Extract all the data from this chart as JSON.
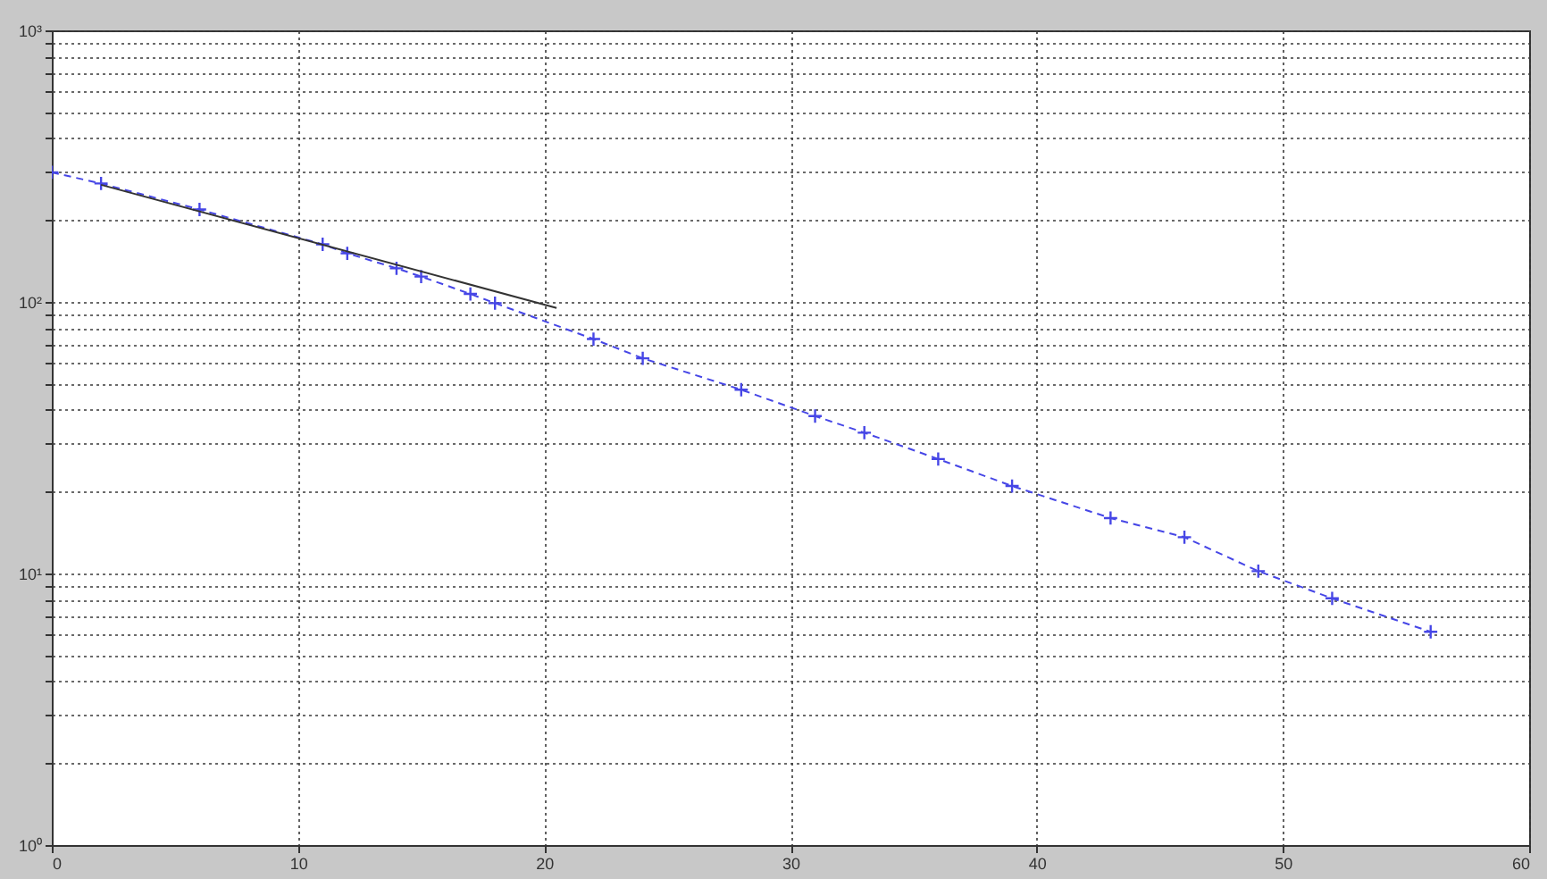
{
  "chart_data": {
    "type": "line",
    "log": "y",
    "grid": true,
    "xlim": [
      0,
      60
    ],
    "xticks": [
      0,
      10,
      20,
      30,
      40,
      50,
      60
    ],
    "ylim": [
      1,
      1000
    ],
    "yticks": [
      {
        "value": 1,
        "label": "10⁰"
      },
      {
        "value": 2,
        "label": null
      },
      {
        "value": 3,
        "label": null
      },
      {
        "value": 4,
        "label": null
      },
      {
        "value": 5,
        "label": null
      },
      {
        "value": 6,
        "label": null
      },
      {
        "value": 7,
        "label": null
      },
      {
        "value": 8,
        "label": null
      },
      {
        "value": 9,
        "label": null
      },
      {
        "value": 10,
        "label": "10¹"
      },
      {
        "value": 20,
        "label": null
      },
      {
        "value": 30,
        "label": null
      },
      {
        "value": 40,
        "label": null
      },
      {
        "value": 50,
        "label": null
      },
      {
        "value": 60,
        "label": null
      },
      {
        "value": 70,
        "label": null
      },
      {
        "value": 80,
        "label": null
      },
      {
        "value": 90,
        "label": null
      },
      {
        "value": 100,
        "label": "10²"
      },
      {
        "value": 200,
        "label": null
      },
      {
        "value": 300,
        "label": null
      },
      {
        "value": 400,
        "label": null
      },
      {
        "value": 500,
        "label": null
      },
      {
        "value": 600,
        "label": null
      },
      {
        "value": 700,
        "label": null
      },
      {
        "value": 800,
        "label": null
      },
      {
        "value": 900,
        "label": null
      },
      {
        "value": 1000,
        "label": "10³"
      }
    ],
    "series": [
      {
        "color": "#4646e6",
        "marker": "cross",
        "line_style": "dashed",
        "x": [
          0,
          2,
          6,
          11,
          12,
          14,
          15,
          17,
          18,
          22,
          24,
          28,
          31,
          33,
          36,
          39,
          43,
          46,
          49,
          52,
          56
        ],
        "values": [
          300,
          273,
          219,
          163,
          151,
          133,
          124,
          107,
          99,
          73,
          62,
          47.5,
          38,
          33,
          26.4,
          21,
          16,
          13.6,
          10.2,
          8.1,
          6.1
        ]
      },
      {
        "color": "#333333",
        "marker": "none",
        "line_style": "solid",
        "x": [
          2,
          20.5
        ],
        "values": [
          270,
          95
        ]
      }
    ]
  }
}
